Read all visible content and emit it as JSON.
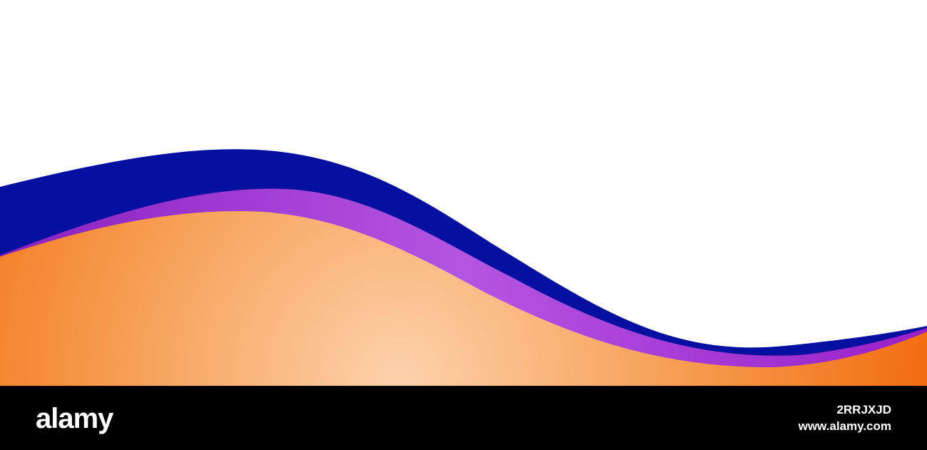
{
  "banner": {
    "logo": "alamy",
    "image_id": "2RRJXJD",
    "url": "www.alamy.com"
  }
}
